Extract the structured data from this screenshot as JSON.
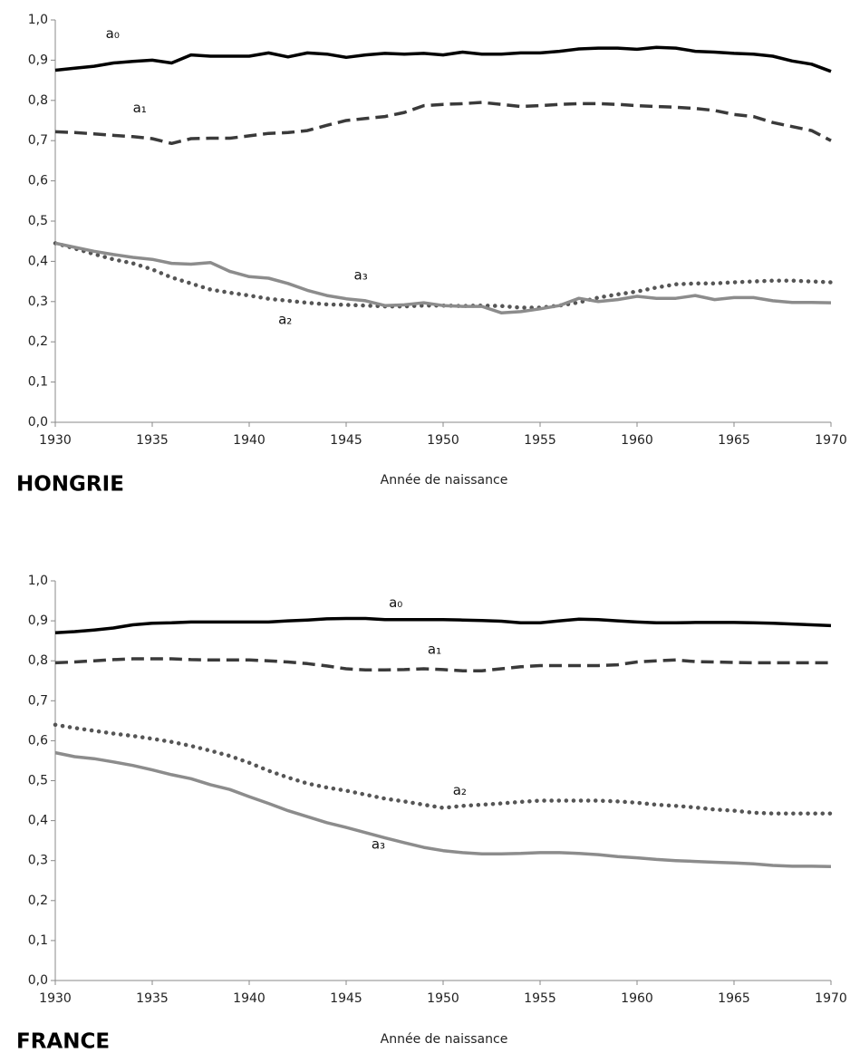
{
  "chart_data": [
    {
      "type": "line",
      "title": "HONGRIE",
      "x_label": "Année de naissance",
      "x": [
        1930,
        1931,
        1932,
        1933,
        1934,
        1935,
        1936,
        1937,
        1938,
        1939,
        1940,
        1941,
        1942,
        1943,
        1944,
        1945,
        1946,
        1947,
        1948,
        1949,
        1950,
        1951,
        1952,
        1953,
        1954,
        1955,
        1956,
        1957,
        1958,
        1959,
        1960,
        1961,
        1962,
        1963,
        1964,
        1965,
        1966,
        1967,
        1968,
        1969,
        1970
      ],
      "xlim": [
        1930,
        1970
      ],
      "xticks": [
        1930,
        1935,
        1940,
        1945,
        1950,
        1955,
        1960,
        1965,
        1970
      ],
      "ylim": [
        0,
        1
      ],
      "yticks": [
        {
          "value": 0,
          "label": "0,0"
        },
        {
          "value": 0.1,
          "label": "0,1"
        },
        {
          "value": 0.2,
          "label": "0,2"
        },
        {
          "value": 0.3,
          "label": "0,3"
        },
        {
          "value": 0.4,
          "label": "0,4"
        },
        {
          "value": 0.5,
          "label": "0,5"
        },
        {
          "value": 0.6,
          "label": "0,6"
        },
        {
          "value": 0.7,
          "label": "0,7"
        },
        {
          "value": 0.8,
          "label": "0,8"
        },
        {
          "value": 0.9,
          "label": "0,9"
        },
        {
          "value": 1,
          "label": "1,0"
        }
      ],
      "grid": false,
      "series": [
        {
          "name": "a₀",
          "color": "#000000",
          "linestyle": "solid",
          "values": [
            0.875,
            0.88,
            0.885,
            0.893,
            0.897,
            0.9,
            0.893,
            0.913,
            0.91,
            0.91,
            0.91,
            0.918,
            0.908,
            0.918,
            0.915,
            0.907,
            0.913,
            0.917,
            0.915,
            0.917,
            0.913,
            0.92,
            0.915,
            0.915,
            0.918,
            0.918,
            0.922,
            0.928,
            0.93,
            0.93,
            0.927,
            0.932,
            0.93,
            0.922,
            0.92,
            0.917,
            0.915,
            0.91,
            0.898,
            0.89,
            0.872
          ]
        },
        {
          "name": "a₁",
          "color": "#3a3a3a",
          "linestyle": "dashed",
          "values": [
            0.722,
            0.72,
            0.717,
            0.713,
            0.71,
            0.705,
            0.693,
            0.705,
            0.706,
            0.706,
            0.712,
            0.718,
            0.72,
            0.725,
            0.738,
            0.75,
            0.755,
            0.76,
            0.77,
            0.787,
            0.79,
            0.792,
            0.795,
            0.79,
            0.785,
            0.787,
            0.79,
            0.792,
            0.792,
            0.79,
            0.787,
            0.785,
            0.783,
            0.78,
            0.775,
            0.765,
            0.76,
            0.745,
            0.735,
            0.725,
            0.7
          ]
        },
        {
          "name": "a₂",
          "color": "#555555",
          "linestyle": "dotted",
          "values": [
            0.445,
            0.432,
            0.418,
            0.405,
            0.395,
            0.38,
            0.36,
            0.345,
            0.33,
            0.322,
            0.315,
            0.307,
            0.302,
            0.297,
            0.293,
            0.292,
            0.29,
            0.288,
            0.288,
            0.29,
            0.29,
            0.289,
            0.29,
            0.289,
            0.285,
            0.285,
            0.29,
            0.298,
            0.31,
            0.318,
            0.325,
            0.335,
            0.343,
            0.345,
            0.345,
            0.348,
            0.35,
            0.352,
            0.352,
            0.35,
            0.348
          ]
        },
        {
          "name": "a₃",
          "color": "#8c8c8c",
          "linestyle": "solid",
          "values": [
            0.445,
            0.435,
            0.425,
            0.417,
            0.41,
            0.405,
            0.395,
            0.393,
            0.397,
            0.375,
            0.362,
            0.358,
            0.345,
            0.328,
            0.315,
            0.307,
            0.302,
            0.29,
            0.292,
            0.297,
            0.29,
            0.288,
            0.288,
            0.272,
            0.275,
            0.282,
            0.29,
            0.308,
            0.3,
            0.305,
            0.313,
            0.308,
            0.308,
            0.315,
            0.305,
            0.31,
            0.31,
            0.302,
            0.298,
            0.298,
            0.297
          ]
        }
      ]
    },
    {
      "type": "line",
      "title": "FRANCE",
      "x_label": "Année de naissance",
      "x": [
        1930,
        1931,
        1932,
        1933,
        1934,
        1935,
        1936,
        1937,
        1938,
        1939,
        1940,
        1941,
        1942,
        1943,
        1944,
        1945,
        1946,
        1947,
        1948,
        1949,
        1950,
        1951,
        1952,
        1953,
        1954,
        1955,
        1956,
        1957,
        1958,
        1959,
        1960,
        1961,
        1962,
        1963,
        1964,
        1965,
        1966,
        1967,
        1968,
        1969,
        1970
      ],
      "xlim": [
        1930,
        1970
      ],
      "xticks": [
        1930,
        1935,
        1940,
        1945,
        1950,
        1955,
        1960,
        1965,
        1970
      ],
      "ylim": [
        0,
        1
      ],
      "yticks": [
        {
          "value": 0,
          "label": "0,0"
        },
        {
          "value": 0.1,
          "label": "0,1"
        },
        {
          "value": 0.2,
          "label": "0,2"
        },
        {
          "value": 0.3,
          "label": "0,3"
        },
        {
          "value": 0.4,
          "label": "0,4"
        },
        {
          "value": 0.5,
          "label": "0,5"
        },
        {
          "value": 0.6,
          "label": "0,6"
        },
        {
          "value": 0.7,
          "label": "0,7"
        },
        {
          "value": 0.8,
          "label": "0,8"
        },
        {
          "value": 0.9,
          "label": "0,9"
        },
        {
          "value": 1,
          "label": "1,0"
        }
      ],
      "grid": false,
      "series": [
        {
          "name": "a₀",
          "color": "#000000",
          "linestyle": "solid",
          "values": [
            0.87,
            0.873,
            0.877,
            0.882,
            0.89,
            0.894,
            0.895,
            0.897,
            0.897,
            0.897,
            0.897,
            0.897,
            0.9,
            0.902,
            0.905,
            0.906,
            0.906,
            0.903,
            0.903,
            0.903,
            0.903,
            0.902,
            0.901,
            0.899,
            0.895,
            0.895,
            0.9,
            0.904,
            0.903,
            0.9,
            0.897,
            0.895,
            0.895,
            0.896,
            0.896,
            0.896,
            0.895,
            0.894,
            0.892,
            0.89,
            0.888
          ]
        },
        {
          "name": "a₁",
          "color": "#3a3a3a",
          "linestyle": "dashed",
          "values": [
            0.795,
            0.797,
            0.8,
            0.803,
            0.805,
            0.805,
            0.805,
            0.803,
            0.802,
            0.802,
            0.802,
            0.8,
            0.797,
            0.793,
            0.787,
            0.78,
            0.777,
            0.777,
            0.778,
            0.78,
            0.778,
            0.775,
            0.775,
            0.78,
            0.785,
            0.788,
            0.788,
            0.788,
            0.788,
            0.79,
            0.797,
            0.8,
            0.802,
            0.798,
            0.797,
            0.796,
            0.795,
            0.795,
            0.795,
            0.795,
            0.795
          ]
        },
        {
          "name": "a₂",
          "color": "#555555",
          "linestyle": "dotted",
          "values": [
            0.64,
            0.632,
            0.625,
            0.618,
            0.612,
            0.605,
            0.597,
            0.587,
            0.575,
            0.562,
            0.545,
            0.525,
            0.508,
            0.493,
            0.483,
            0.475,
            0.465,
            0.455,
            0.448,
            0.44,
            0.432,
            0.437,
            0.44,
            0.443,
            0.447,
            0.45,
            0.45,
            0.45,
            0.45,
            0.448,
            0.445,
            0.44,
            0.437,
            0.433,
            0.428,
            0.425,
            0.42,
            0.418,
            0.418,
            0.418,
            0.418
          ]
        },
        {
          "name": "a₃",
          "color": "#8c8c8c",
          "linestyle": "solid",
          "values": [
            0.57,
            0.56,
            0.555,
            0.547,
            0.538,
            0.527,
            0.515,
            0.505,
            0.49,
            0.478,
            0.46,
            0.443,
            0.425,
            0.41,
            0.395,
            0.383,
            0.37,
            0.357,
            0.345,
            0.333,
            0.325,
            0.32,
            0.317,
            0.317,
            0.318,
            0.32,
            0.32,
            0.318,
            0.315,
            0.31,
            0.307,
            0.303,
            0.3,
            0.298,
            0.296,
            0.294,
            0.292,
            0.288,
            0.286,
            0.286,
            0.285
          ]
        }
      ]
    }
  ]
}
